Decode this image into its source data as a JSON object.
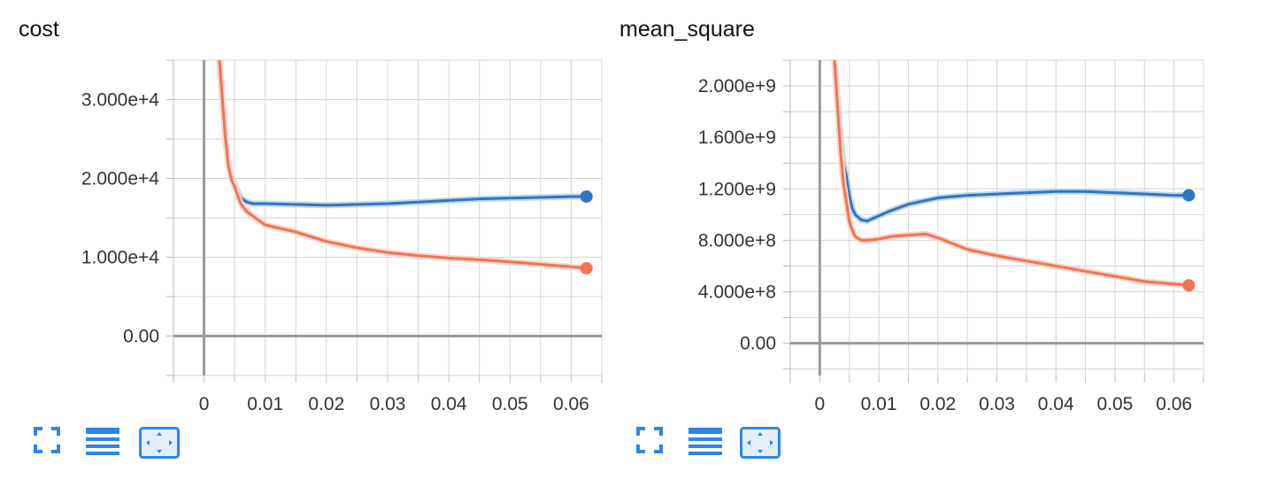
{
  "theme": {
    "blue": "#2f77bf",
    "orange": "#f07453",
    "blue_raw": "#c7ddee",
    "orange_raw": "#f9d5c8",
    "grid": "#d4d4d4",
    "axis": "#999999",
    "tool_blue": "#2c87e8"
  },
  "toolbar_icons": [
    "fit-domain-icon",
    "toggle-y-log-icon",
    "zoom-out-icon"
  ],
  "chart_data": [
    {
      "type": "line",
      "title": "cost",
      "xlabel": "",
      "ylabel": "",
      "xlim": [
        -0.005,
        0.065
      ],
      "ylim": [
        -5000,
        35000
      ],
      "xticks": [
        0,
        0.01,
        0.02,
        0.03,
        0.04,
        0.05,
        0.06
      ],
      "xtick_labels": [
        "0",
        "0.01",
        "0.02",
        "0.03",
        "0.04",
        "0.05",
        "0.06"
      ],
      "yticks": [
        0,
        10000,
        20000,
        30000
      ],
      "ytick_labels": [
        "0.00",
        "1.000e+4",
        "2.000e+4",
        "3.000e+4"
      ],
      "grid": true,
      "series": [
        {
          "color": "#2f77bf",
          "x": [
            0.0025,
            0.003,
            0.0035,
            0.004,
            0.0045,
            0.005,
            0.0055,
            0.006,
            0.007,
            0.008,
            0.01,
            0.015,
            0.02,
            0.025,
            0.03,
            0.035,
            0.04,
            0.045,
            0.05,
            0.055,
            0.06,
            0.0625
          ],
          "y": [
            35000,
            30000,
            25000,
            21500,
            20000,
            19300,
            18300,
            17500,
            17000,
            16800,
            16800,
            16700,
            16600,
            16700,
            16800,
            17000,
            17200,
            17400,
            17500,
            17600,
            17700,
            17700
          ]
        },
        {
          "color": "#f07453",
          "x": [
            0.0025,
            0.003,
            0.0035,
            0.004,
            0.0045,
            0.005,
            0.0055,
            0.006,
            0.007,
            0.008,
            0.01,
            0.015,
            0.02,
            0.025,
            0.03,
            0.035,
            0.04,
            0.045,
            0.05,
            0.055,
            0.06,
            0.0625
          ],
          "y": [
            35000,
            30000,
            25000,
            21500,
            19800,
            19000,
            17800,
            16800,
            15800,
            15200,
            14100,
            13200,
            12000,
            11200,
            10600,
            10200,
            9900,
            9700,
            9400,
            9100,
            8800,
            8600
          ]
        }
      ]
    },
    {
      "type": "line",
      "title": "mean_square",
      "xlabel": "",
      "ylabel": "",
      "xlim": [
        -0.005,
        0.065
      ],
      "ylim": [
        -250000000,
        2200000000
      ],
      "xticks": [
        0,
        0.01,
        0.02,
        0.03,
        0.04,
        0.05,
        0.06
      ],
      "xtick_labels": [
        "0",
        "0.01",
        "0.02",
        "0.03",
        "0.04",
        "0.05",
        "0.06"
      ],
      "yticks": [
        0,
        400000000,
        800000000,
        1200000000,
        1600000000,
        2000000000
      ],
      "ytick_labels": [
        "0.00",
        "4.000e+8",
        "8.000e+8",
        "1.200e+9",
        "1.600e+9",
        "2.000e+9"
      ],
      "grid": true,
      "series": [
        {
          "color": "#2f77bf",
          "x": [
            0.0025,
            0.003,
            0.0035,
            0.004,
            0.0045,
            0.005,
            0.0055,
            0.006,
            0.007,
            0.008,
            0.01,
            0.012,
            0.015,
            0.02,
            0.025,
            0.03,
            0.035,
            0.04,
            0.045,
            0.05,
            0.055,
            0.06,
            0.0625
          ],
          "y": [
            2200000000,
            1900000000,
            1600000000,
            1400000000,
            1300000000,
            1150000000,
            1050000000,
            1000000000,
            960000000,
            950000000,
            990000000,
            1030000000,
            1080000000,
            1130000000,
            1150000000,
            1160000000,
            1170000000,
            1180000000,
            1180000000,
            1170000000,
            1160000000,
            1150000000,
            1150000000
          ]
        },
        {
          "color": "#f07453",
          "x": [
            0.0025,
            0.003,
            0.0035,
            0.004,
            0.0045,
            0.005,
            0.0055,
            0.006,
            0.007,
            0.008,
            0.01,
            0.012,
            0.015,
            0.018,
            0.02,
            0.025,
            0.03,
            0.035,
            0.04,
            0.045,
            0.05,
            0.055,
            0.06,
            0.0625
          ],
          "y": [
            2200000000,
            1850000000,
            1500000000,
            1250000000,
            1100000000,
            950000000,
            880000000,
            830000000,
            800000000,
            800000000,
            810000000,
            830000000,
            840000000,
            850000000,
            820000000,
            730000000,
            680000000,
            640000000,
            600000000,
            560000000,
            520000000,
            480000000,
            460000000,
            450000000
          ]
        }
      ]
    }
  ]
}
